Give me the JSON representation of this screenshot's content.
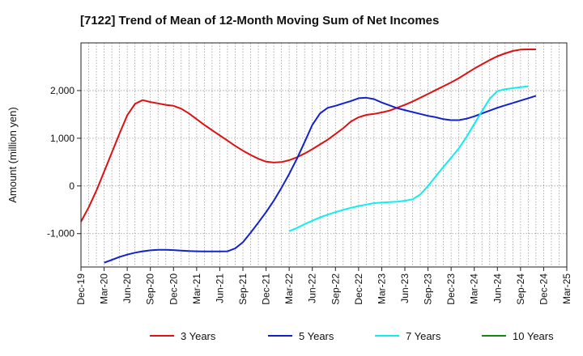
{
  "chart_data": {
    "type": "line",
    "title": "[7122]  Trend of Mean of 12-Month Moving Sum of Net Incomes",
    "ylabel": "Amount (million yen)",
    "xlabel": "",
    "ylim": [
      -1700,
      3000
    ],
    "y_ticks": [
      -1000,
      0,
      1000,
      2000
    ],
    "y_tick_labels": [
      "-1,000",
      "0",
      "1,000",
      "2,000"
    ],
    "x_tick_labels": [
      "Dec-19",
      "Mar-20",
      "Jun-20",
      "Sep-20",
      "Dec-20",
      "Mar-21",
      "Jun-21",
      "Sep-21",
      "Dec-21",
      "Mar-22",
      "Jun-22",
      "Sep-22",
      "Dec-22",
      "Mar-23",
      "Jun-23",
      "Sep-23",
      "Dec-23",
      "Mar-24",
      "Jun-24",
      "Sep-24",
      "Dec-24",
      "Mar-25"
    ],
    "grid": true,
    "legend_position": "bottom",
    "series": [
      {
        "name": "3 Years",
        "color": "#dd1111",
        "start_month": 0,
        "values": [
          -750,
          -450,
          -100,
          300,
          700,
          1100,
          1480,
          1720,
          1800,
          1760,
          1730,
          1700,
          1680,
          1620,
          1520,
          1400,
          1280,
          1170,
          1060,
          950,
          840,
          740,
          650,
          570,
          510,
          490,
          500,
          540,
          600,
          680,
          770,
          870,
          970,
          1090,
          1210,
          1350,
          1440,
          1490,
          1510,
          1540,
          1580,
          1640,
          1700,
          1770,
          1850,
          1930,
          2010,
          2090,
          2170,
          2260,
          2360,
          2460,
          2550,
          2640,
          2720,
          2780,
          2830,
          2860,
          2865,
          2865
        ]
      },
      {
        "name": "5 Years",
        "color": "#1122cc",
        "start_month": 3,
        "values": [
          -1610,
          -1550,
          -1490,
          -1440,
          -1400,
          -1370,
          -1350,
          -1340,
          -1340,
          -1345,
          -1355,
          -1365,
          -1370,
          -1375,
          -1375,
          -1375,
          -1370,
          -1310,
          -1180,
          -980,
          -770,
          -550,
          -310,
          -40,
          250,
          570,
          920,
          1280,
          1520,
          1640,
          1680,
          1730,
          1780,
          1840,
          1850,
          1820,
          1750,
          1690,
          1630,
          1590,
          1550,
          1510,
          1470,
          1440,
          1400,
          1380,
          1380,
          1410,
          1460,
          1520,
          1580,
          1640,
          1690,
          1740,
          1790,
          1840,
          1890
        ]
      },
      {
        "name": "7 Years",
        "color": "#11eeee",
        "start_month": 27,
        "values": [
          -950,
          -880,
          -800,
          -730,
          -660,
          -600,
          -550,
          -500,
          -460,
          -420,
          -390,
          -360,
          -350,
          -340,
          -330,
          -310,
          -280,
          -180,
          0,
          200,
          400,
          590,
          790,
          1030,
          1300,
          1570,
          1830,
          1990,
          2030,
          2050,
          2070,
          2090
        ]
      },
      {
        "name": "10 Years",
        "color": "#118811",
        "start_month": 0,
        "values": []
      }
    ]
  }
}
